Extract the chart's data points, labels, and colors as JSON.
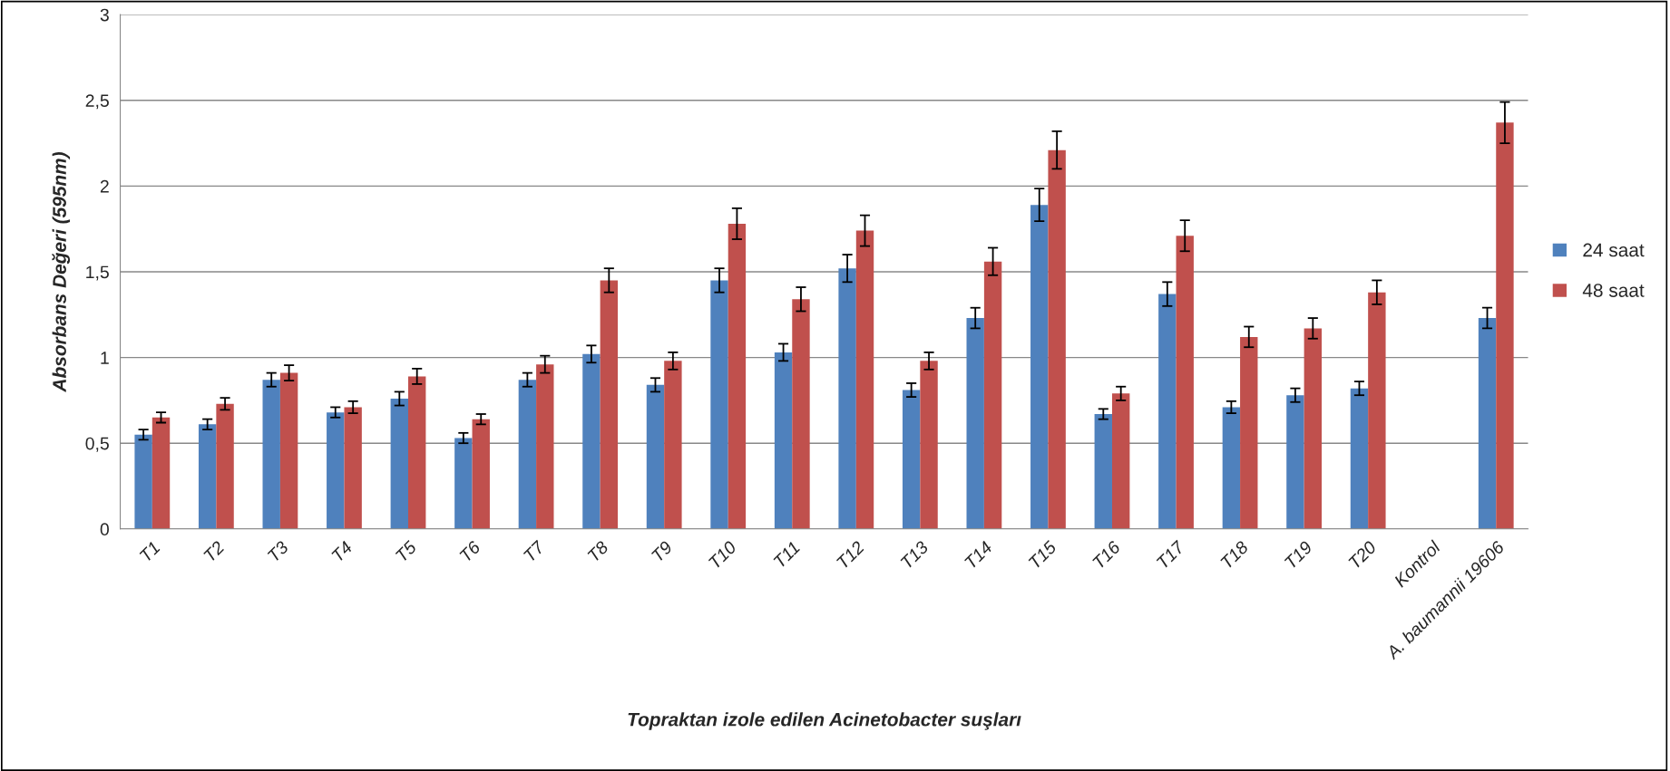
{
  "chart_data": {
    "type": "bar",
    "xlabel": "Topraktan izole edilen Acinetobacter suşları",
    "ylabel": "Absorbans Değeri (595nm)",
    "categories": [
      "T1",
      "T2",
      "T3",
      "T4",
      "T5",
      "T6",
      "T7",
      "T8",
      "T9",
      "T10",
      "T11",
      "T12",
      "T13",
      "T14",
      "T15",
      "T16",
      "T17",
      "T18",
      "T19",
      "T20",
      "Kontrol",
      "A. baumannii 19606"
    ],
    "series": [
      {
        "name": "24 saat",
        "color": "#4f81bd",
        "values": [
          0.55,
          0.61,
          0.87,
          0.68,
          0.76,
          0.53,
          0.87,
          1.02,
          0.84,
          1.45,
          1.03,
          1.52,
          0.81,
          1.23,
          1.89,
          0.67,
          1.37,
          0.71,
          0.78,
          0.82,
          0,
          1.23
        ],
        "errors": [
          0.03,
          0.03,
          0.04,
          0.03,
          0.04,
          0.03,
          0.04,
          0.05,
          0.04,
          0.07,
          0.05,
          0.08,
          0.04,
          0.06,
          0.095,
          0.03,
          0.07,
          0.035,
          0.04,
          0.04,
          null,
          0.06
        ]
      },
      {
        "name": "48 saat",
        "color": "#c0504d",
        "values": [
          0.65,
          0.73,
          0.91,
          0.71,
          0.89,
          0.64,
          0.96,
          1.45,
          0.98,
          1.78,
          1.34,
          1.74,
          0.98,
          1.56,
          2.21,
          0.79,
          1.71,
          1.12,
          1.17,
          1.38,
          0,
          2.37
        ],
        "errors": [
          0.03,
          0.035,
          0.045,
          0.035,
          0.045,
          0.03,
          0.05,
          0.07,
          0.05,
          0.09,
          0.07,
          0.09,
          0.05,
          0.08,
          0.11,
          0.04,
          0.09,
          0.06,
          0.06,
          0.07,
          null,
          0.12
        ]
      }
    ],
    "ylim": [
      0,
      3
    ],
    "yticks": [
      0,
      {
        "value": 0.5,
        "label": "0,5"
      },
      1,
      {
        "value": 1.5,
        "label": "1,5"
      },
      2,
      {
        "value": 2.5,
        "label": "2,5"
      },
      3
    ],
    "grid": "y",
    "legend": "right"
  }
}
